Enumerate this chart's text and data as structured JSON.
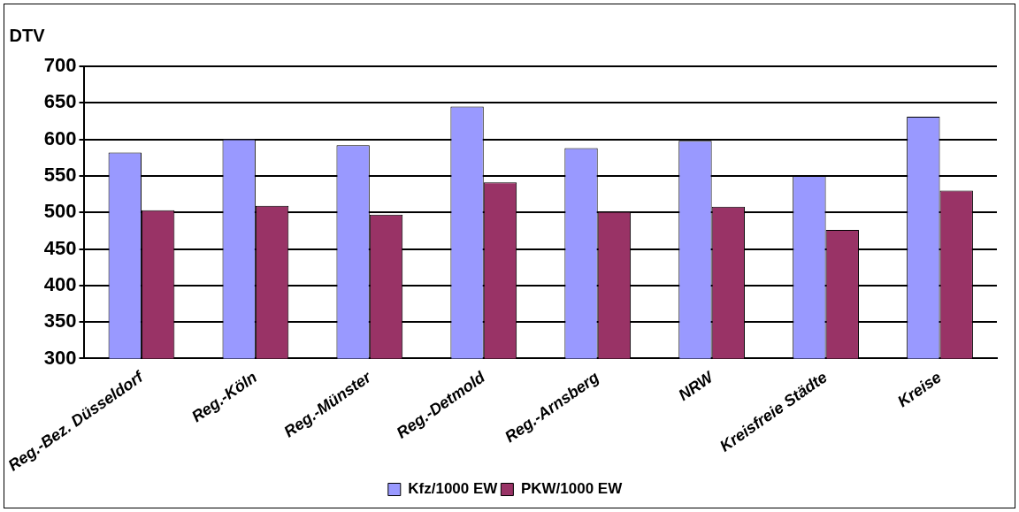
{
  "chart_data": {
    "type": "bar",
    "ylabel": "DTV",
    "categories": [
      "Reg.-Bez. Düsseldorf",
      "Reg.-Köln",
      "Reg.-Münster",
      "Reg.-Detmold",
      "Reg.-Arnsberg",
      "NRW",
      "Kreisfreie Städte",
      "Kreise"
    ],
    "series": [
      {
        "name": "Kfz/1000 EW",
        "color": "#9999ff",
        "values": [
          582,
          600,
          592,
          645,
          588,
          598,
          550,
          631
        ]
      },
      {
        "name": "PKW/1000 EW",
        "color": "#993366",
        "values": [
          503,
          509,
          497,
          541,
          501,
          508,
          476,
          530
        ]
      }
    ],
    "ylim": [
      300,
      700
    ],
    "yticks": [
      300,
      350,
      400,
      450,
      500,
      550,
      600,
      650,
      700
    ],
    "grid": "y",
    "legend": "bottom"
  }
}
